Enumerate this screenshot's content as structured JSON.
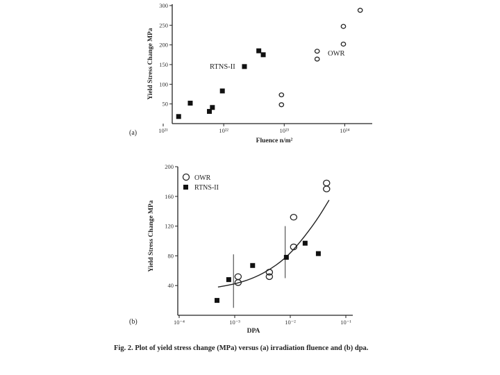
{
  "caption": "Fig. 2. Plot of yield stress change (MPa) versus (a) irradiation fluence and (b) dpa.",
  "chart_data": [
    {
      "type": "scatter",
      "panel": "(a)",
      "xlabel": "Fluence n/m²",
      "ylabel": "Yield Stress Change MPa",
      "x_scale": "log",
      "xlim": [
        1e+21,
        3e+24
      ],
      "ylim": [
        0,
        300
      ],
      "x_ticks": [
        1e+21,
        1e+22,
        1e+23,
        1e+24
      ],
      "x_tick_labels": [
        "10²¹",
        "10²²",
        "10²³",
        "10²⁴"
      ],
      "y_ticks": [
        50,
        100,
        150,
        200,
        250,
        300
      ],
      "y_tick_labels": [
        "50",
        "100",
        "150",
        "200",
        "250",
        "300"
      ],
      "grid": false,
      "series": [
        {
          "name": "RTNS-II",
          "marker": "filled-square",
          "points": [
            {
              "x": 1.8e+21,
              "y": 18
            },
            {
              "x": 2.8e+21,
              "y": 52
            },
            {
              "x": 5.8e+21,
              "y": 31
            },
            {
              "x": 6.5e+21,
              "y": 41
            },
            {
              "x": 9.5e+21,
              "y": 83
            },
            {
              "x": 2.2e+22,
              "y": 145
            },
            {
              "x": 3.8e+22,
              "y": 185
            },
            {
              "x": 4.5e+22,
              "y": 175
            }
          ]
        },
        {
          "name": "OWR",
          "marker": "open-circle",
          "points": [
            {
              "x": 9e+22,
              "y": 48
            },
            {
              "x": 9e+22,
              "y": 73
            },
            {
              "x": 3.5e+23,
              "y": 164
            },
            {
              "x": 3.5e+23,
              "y": 184
            },
            {
              "x": 9.5e+23,
              "y": 202
            },
            {
              "x": 9.5e+23,
              "y": 247
            },
            {
              "x": 1.8e+24,
              "y": 288
            }
          ]
        }
      ]
    },
    {
      "type": "scatter",
      "panel": "(b)",
      "xlabel": "DPA",
      "ylabel": "Yield Stress Change MPa",
      "x_scale": "log",
      "xlim": [
        0.0001,
        0.1
      ],
      "ylim": [
        0,
        200
      ],
      "x_ticks": [
        0.0001,
        0.001,
        0.01,
        0.1
      ],
      "x_tick_labels": [
        "10⁻⁴",
        "10⁻³",
        "10⁻²",
        "10⁻¹"
      ],
      "y_ticks": [
        40,
        80,
        120,
        160,
        200
      ],
      "y_tick_labels": [
        "40",
        "80",
        "120",
        "160",
        "200"
      ],
      "grid": false,
      "legend": {
        "position": "top-left",
        "entries": [
          "OWR",
          "RTNS-II"
        ]
      },
      "series": [
        {
          "name": "OWR",
          "marker": "open-circle",
          "points": [
            {
              "x": 0.00115,
              "y": 44
            },
            {
              "x": 0.00115,
              "y": 52
            },
            {
              "x": 0.0042,
              "y": 52
            },
            {
              "x": 0.0042,
              "y": 58
            },
            {
              "x": 0.0115,
              "y": 92
            },
            {
              "x": 0.0115,
              "y": 132
            },
            {
              "x": 0.045,
              "y": 170
            },
            {
              "x": 0.045,
              "y": 178
            }
          ]
        },
        {
          "name": "RTNS-II",
          "marker": "filled-square",
          "points": [
            {
              "x": 0.00048,
              "y": 20
            },
            {
              "x": 0.00078,
              "y": 48
            },
            {
              "x": 0.0021,
              "y": 67
            },
            {
              "x": 0.0085,
              "y": 78
            },
            {
              "x": 0.0185,
              "y": 97
            },
            {
              "x": 0.032,
              "y": 83
            }
          ]
        }
      ],
      "error_bars": [
        {
          "x": 0.00095,
          "low": 10,
          "high": 82
        },
        {
          "x": 0.0081,
          "low": 50,
          "high": 120
        }
      ],
      "trend_curve": [
        {
          "x": 0.0005,
          "y": 38
        },
        {
          "x": 0.001,
          "y": 42
        },
        {
          "x": 0.002,
          "y": 49
        },
        {
          "x": 0.004,
          "y": 60
        },
        {
          "x": 0.008,
          "y": 76
        },
        {
          "x": 0.015,
          "y": 98
        },
        {
          "x": 0.03,
          "y": 128
        },
        {
          "x": 0.05,
          "y": 155
        }
      ]
    }
  ]
}
